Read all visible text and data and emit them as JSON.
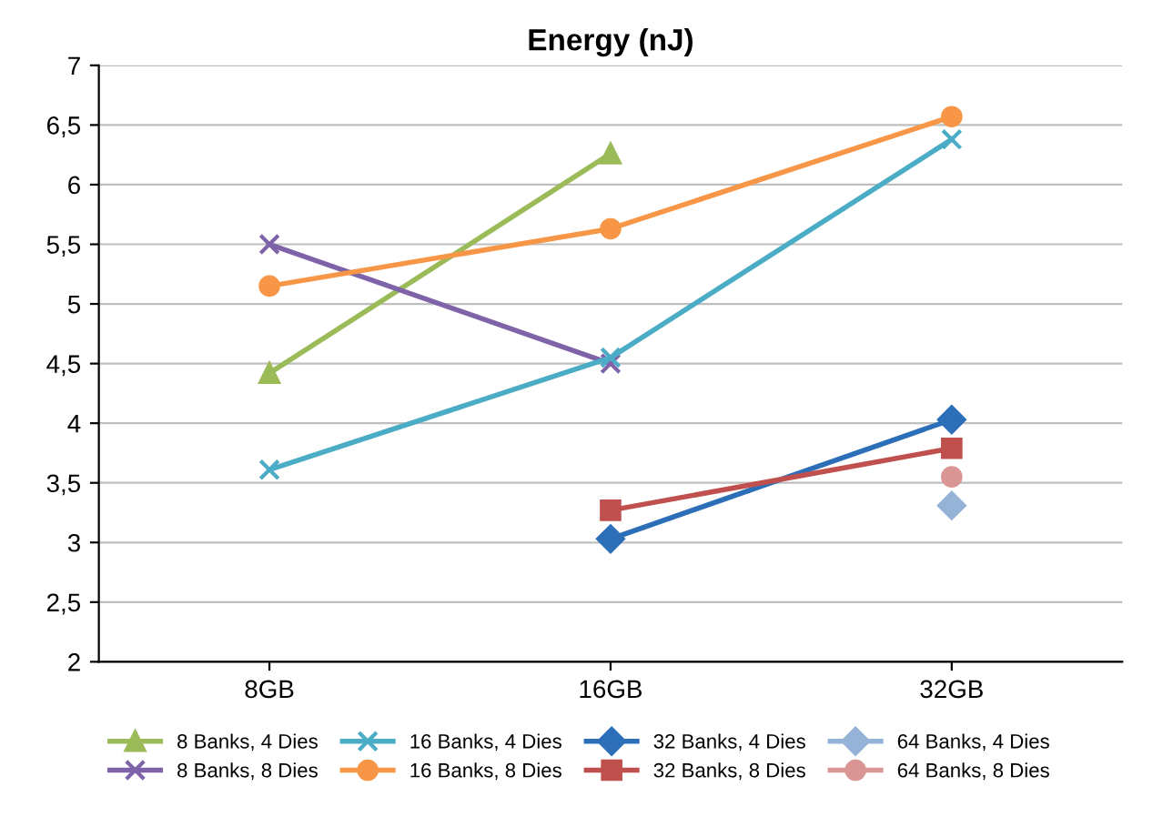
{
  "chart_data": {
    "type": "line",
    "title": "Energy (nJ)",
    "categories": [
      "8GB",
      "16GB",
      "32GB"
    ],
    "ylim": [
      2,
      7
    ],
    "yticks": [
      2,
      {
        "value": 2.5,
        "label": "2,5"
      },
      3,
      {
        "value": 3.5,
        "label": "3,5"
      },
      4,
      {
        "value": 4.5,
        "label": "4,5"
      },
      5,
      {
        "value": 5.5,
        "label": "5,5"
      },
      6,
      {
        "value": 6.5,
        "label": "6,5"
      },
      7
    ],
    "grid": "y",
    "legend": "bottom",
    "line_style": "solid",
    "series": [
      {
        "name": "8 Banks, 4 Dies",
        "color": "#9bbb59",
        "marker": "triangle",
        "values": [
          4.42,
          6.26,
          null
        ]
      },
      {
        "name": "8 Banks, 8 Dies",
        "color": "#7f63a8",
        "marker": "cross",
        "values": [
          5.5,
          4.5,
          null
        ]
      },
      {
        "name": "16 Banks, 4 Dies",
        "color": "#4bacc6",
        "marker": "cross",
        "values": [
          3.61,
          4.55,
          6.38
        ]
      },
      {
        "name": "16 Banks, 8 Dies",
        "color": "#f79646",
        "marker": "circle",
        "values": [
          5.15,
          5.63,
          6.57
        ]
      },
      {
        "name": "32 Banks, 4 Dies",
        "color": "#2c6fb8",
        "marker": "diamond",
        "values": [
          null,
          3.03,
          4.03
        ]
      },
      {
        "name": "32 Banks, 8 Dies",
        "color": "#c0504d",
        "marker": "square",
        "values": [
          null,
          3.27,
          3.79
        ]
      },
      {
        "name": "64 Banks, 4 Dies",
        "color": "#95b3d7",
        "marker": "diamond",
        "values": [
          null,
          null,
          3.31
        ]
      },
      {
        "name": "64 Banks, 8 Dies",
        "color": "#d99694",
        "marker": "circle",
        "values": [
          null,
          null,
          3.55
        ]
      }
    ]
  }
}
